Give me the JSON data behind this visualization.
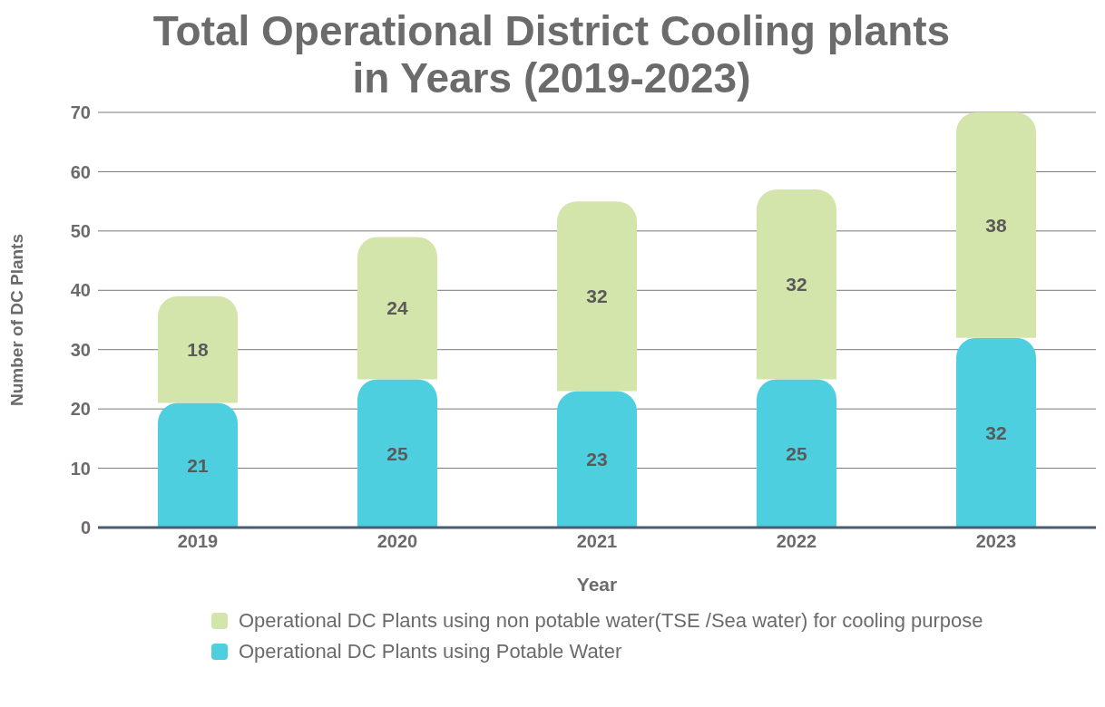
{
  "chart_data": {
    "type": "bar",
    "title": "Total Operational District Cooling plants\nin Years (2019-2023)",
    "xlabel": "Year",
    "ylabel": "Number of DC Plants",
    "categories": [
      "2019",
      "2020",
      "2021",
      "2022",
      "2023"
    ],
    "stacked": true,
    "series": [
      {
        "name": "Operational DC Plants using Potable Water",
        "color": "#4dcfe0",
        "values": [
          21,
          25,
          23,
          25,
          32
        ]
      },
      {
        "name": "Operational DC Plants using non potable water(TSE /Sea water) for cooling purpose",
        "color": "#d4e5ab",
        "values": [
          18,
          24,
          32,
          32,
          38
        ]
      }
    ],
    "ylim": [
      0,
      70
    ],
    "yticks": [
      0,
      10,
      20,
      30,
      40,
      50,
      60,
      70
    ],
    "grid": "y",
    "data_labels": true,
    "legend": "bottom"
  }
}
